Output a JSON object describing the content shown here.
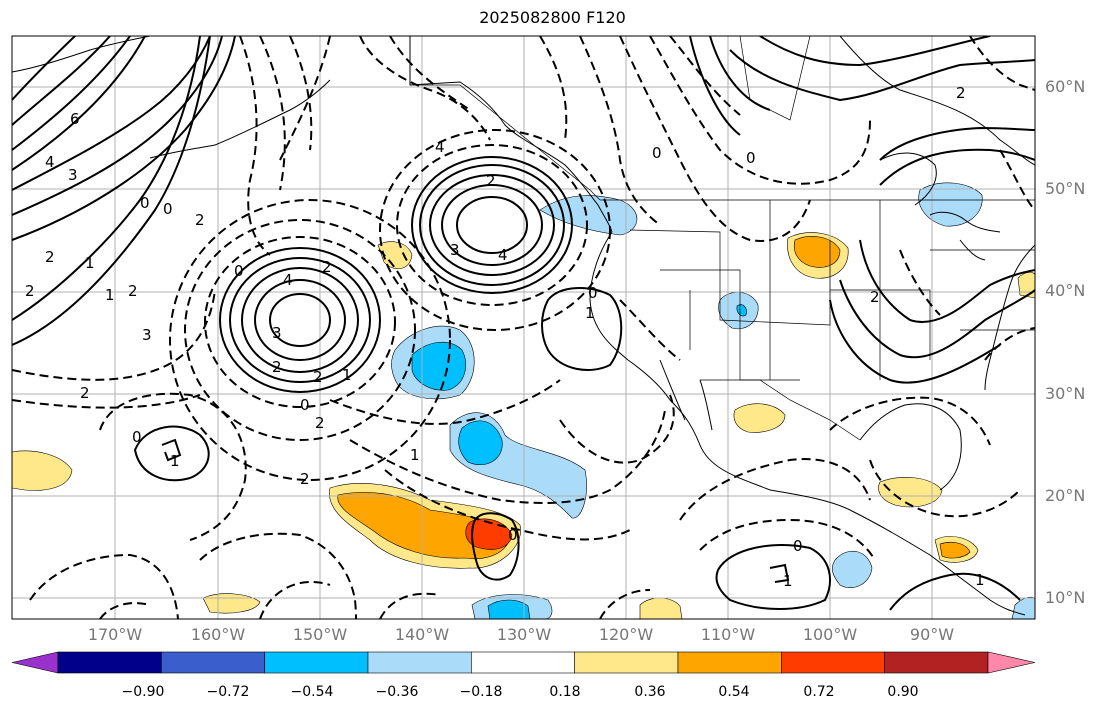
{
  "title": "2025082800 F120",
  "lon_labels": [
    "170°W",
    "160°W",
    "150°W",
    "140°W",
    "130°W",
    "120°W",
    "110°W",
    "100°W",
    "90°W"
  ],
  "lat_labels": [
    "60°N",
    "50°N",
    "40°N",
    "30°N",
    "20°N",
    "10°N"
  ],
  "colorbar": {
    "labels": [
      "−0.90",
      "−0.72",
      "−0.54",
      "−0.36",
      "−0.18",
      "0.18",
      "0.36",
      "0.54",
      "0.72",
      "0.90"
    ],
    "colors": [
      "#9932cc",
      "#00008b",
      "#3a5fcd",
      "#00bfff",
      "#aadcfa",
      "#ffffff",
      "#ffe88a",
      "#ffa500",
      "#ff3c00",
      "#b22222",
      "#ff88aa"
    ]
  },
  "contour_labels": [
    "6",
    "4",
    "3",
    "0",
    "0",
    "2",
    "2",
    "2",
    "1",
    "1",
    "2",
    "3",
    "0",
    "4",
    "2",
    "3",
    "2",
    "1",
    "2",
    "0",
    "2",
    "2",
    "1",
    "0",
    "1",
    "3",
    "4",
    "4",
    "2",
    "0",
    "1",
    "0",
    "2",
    "0",
    "2",
    "0",
    "1",
    "1",
    "2",
    "0"
  ],
  "map_extent": {
    "lon": [
      -180,
      -80
    ],
    "lat": [
      8,
      65
    ]
  }
}
